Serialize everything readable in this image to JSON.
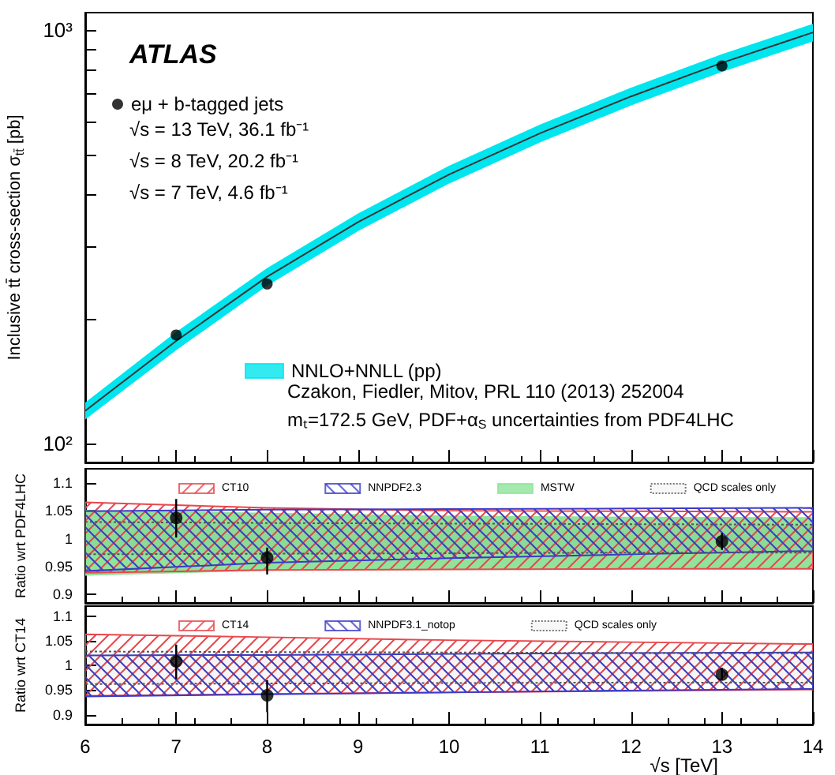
{
  "chart_data": [
    {
      "type": "scatter",
      "xlim": [
        6,
        14
      ],
      "xticks": [
        6,
        7,
        8,
        9,
        10,
        11,
        12,
        13,
        14
      ],
      "log": true,
      "ylim": [
        90,
        1100
      ],
      "yticks": [
        {
          "value": 100,
          "label": "10²"
        },
        {
          "value": 200,
          "label": null
        },
        {
          "value": 300,
          "label": null
        },
        {
          "value": 400,
          "label": null
        },
        {
          "value": 500,
          "label": null
        },
        {
          "value": 600,
          "label": null
        },
        {
          "value": 700,
          "label": null
        },
        {
          "value": 800,
          "label": null
        },
        {
          "value": 900,
          "label": null
        },
        {
          "value": 1000,
          "label": "10³"
        }
      ],
      "ylabel": "Inclusive tt̄ cross-section σ$_{tt̄}$ [pb]",
      "tick_labels": "y",
      "legend": "left",
      "marker": "circle",
      "annotations": [
        "ATLAS",
        "√s = 13 TeV, 36.1 fb⁻¹",
        "√s = 8 TeV, 20.2 fb⁻¹",
        "√s = 7 TeV, 4.6 fb⁻¹",
        "Czakon, Fiedler, Mitov, PRL 110 (2013) 252004",
        "mₜ=172.5 GeV, PDF+α$_{S}$ uncertainties from PDF4LHC"
      ],
      "series": [
        {
          "name": "eμ + b-tagged jets",
          "color": "#000000",
          "x": [
            7,
            8,
            13
          ],
          "values": [
            183,
            243,
            818
          ]
        },
        {
          "type": "area",
          "name": "NNLO+NNLL (pp)",
          "color": "#00e5ee",
          "x": [
            6,
            7,
            8,
            9,
            10,
            11,
            12,
            13,
            14
          ],
          "values": [
            null,
            null,
            null,
            null,
            null,
            null,
            null,
            null,
            null
          ],
          "lower": [
            115,
            169,
            242,
            328,
            427,
            537,
            659,
            795,
            941
          ],
          "upper": [
            125,
            185,
            264,
            358,
            467,
            587,
            721,
            869,
            1029
          ]
        },
        {
          "type": "line",
          "color": "#333333",
          "marker": "none",
          "x": [
            6,
            7,
            8,
            9,
            10,
            11,
            12,
            13,
            14
          ],
          "values": [
            120,
            177,
            253,
            343,
            447,
            562,
            690,
            832,
            985
          ]
        }
      ]
    },
    {
      "type": "scatter",
      "xlim": [
        6,
        14
      ],
      "xticks": [
        6,
        7,
        8,
        9,
        10,
        11,
        12,
        13,
        14
      ],
      "ylim": [
        0.885,
        1.125
      ],
      "yticks": [
        0.9,
        0.95,
        1,
        1.05,
        1.1
      ],
      "ylabel": "Ratio wrt PDF4LHC",
      "tick_labels": "y",
      "legend": "top",
      "marker": "circle",
      "series": [
        {
          "color": "#000000",
          "x": [
            7,
            8,
            13
          ],
          "values": [
            1.037,
            0.966,
            0.995
          ],
          "errors": [
            [
              1.002,
              1.071
            ],
            [
              0.936,
              0.984
            ],
            [
              0.98,
              1.01
            ]
          ]
        },
        {
          "type": "area",
          "name": "CT10",
          "color": "#e8474c",
          "x": [
            6,
            8,
            10,
            12,
            14
          ],
          "values": [
            null,
            null,
            null,
            null,
            null
          ],
          "lower": [
            0.939,
            0.944,
            0.945,
            0.946,
            0.946
          ],
          "upper": [
            1.065,
            1.055,
            1.05,
            1.049,
            1.048
          ]
        },
        {
          "type": "area",
          "name": "NNPDF2.3",
          "color": "#3b3bc8",
          "x": [
            6,
            8,
            10,
            12,
            14
          ],
          "values": [
            null,
            null,
            null,
            null,
            null
          ],
          "lower": [
            0.942,
            0.957,
            0.965,
            0.972,
            0.978
          ],
          "upper": [
            1.049,
            1.052,
            1.053,
            1.054,
            1.055
          ]
        },
        {
          "type": "area",
          "name": "MSTW",
          "color": "#8fe39a",
          "x": [
            6,
            8,
            10,
            12,
            14
          ],
          "values": [
            null,
            null,
            null,
            null,
            null
          ],
          "lower": [
            0.935,
            0.944,
            0.946,
            0.947,
            0.948
          ],
          "upper": [
            1.05,
            1.045,
            1.04,
            1.038,
            1.037
          ]
        },
        {
          "type": "area",
          "name": "QCD scales only",
          "color": "#555555",
          "line_style": "dotted",
          "x": [
            6,
            8,
            10,
            12,
            14
          ],
          "values": [
            null,
            null,
            null,
            null,
            null
          ],
          "lower": [
            0.972,
            0.973,
            0.974,
            0.975,
            0.975
          ],
          "upper": [
            1.03,
            1.028,
            1.027,
            1.026,
            1.025
          ]
        }
      ]
    },
    {
      "type": "scatter",
      "xlim": [
        6,
        14
      ],
      "xticks": [
        6,
        7,
        8,
        9,
        10,
        11,
        12,
        13,
        14
      ],
      "ylim": [
        0.88,
        1.12
      ],
      "yticks": [
        0.9,
        0.95,
        1,
        1.05,
        1.1
      ],
      "xlabel": "√s [TeV]",
      "ylabel": "Ratio wrt CT14",
      "legend": "top",
      "marker": "circle",
      "series": [
        {
          "color": "#000000",
          "x": [
            7,
            8,
            13
          ],
          "values": [
            1.008,
            0.939,
            0.981
          ],
          "errors": [
            [
              0.972,
              1.042
            ],
            [
              0.905,
              0.97
            ],
            [
              0.97,
              0.995
            ]
          ]
        },
        {
          "type": "area",
          "name": "CT14",
          "color": "#e8474c",
          "x": [
            6,
            8,
            10,
            12,
            14
          ],
          "values": [
            null,
            null,
            null,
            null,
            null
          ],
          "lower": [
            0.938,
            0.942,
            0.945,
            0.948,
            0.951
          ],
          "upper": [
            1.063,
            1.057,
            1.051,
            1.047,
            1.043
          ]
        },
        {
          "type": "area",
          "name": "NNPDF3.1_notop",
          "color": "#3b3bc8",
          "x": [
            6,
            8,
            10,
            12,
            14
          ],
          "values": [
            null,
            null,
            null,
            null,
            null
          ],
          "lower": [
            0.937,
            0.941,
            0.945,
            0.949,
            0.952
          ],
          "upper": [
            1.02,
            1.021,
            1.023,
            1.025,
            1.026
          ]
        },
        {
          "type": "area",
          "name": "QCD scales only",
          "color": "#555555",
          "line_style": "dotted",
          "x": [
            6,
            8,
            10,
            12,
            14
          ],
          "values": [
            null,
            null,
            null,
            null,
            null
          ],
          "lower": [
            0.962,
            0.963,
            0.964,
            0.965,
            0.965
          ],
          "upper": [
            1.028,
            1.027,
            1.026,
            1.025,
            1.025
          ]
        }
      ]
    }
  ]
}
